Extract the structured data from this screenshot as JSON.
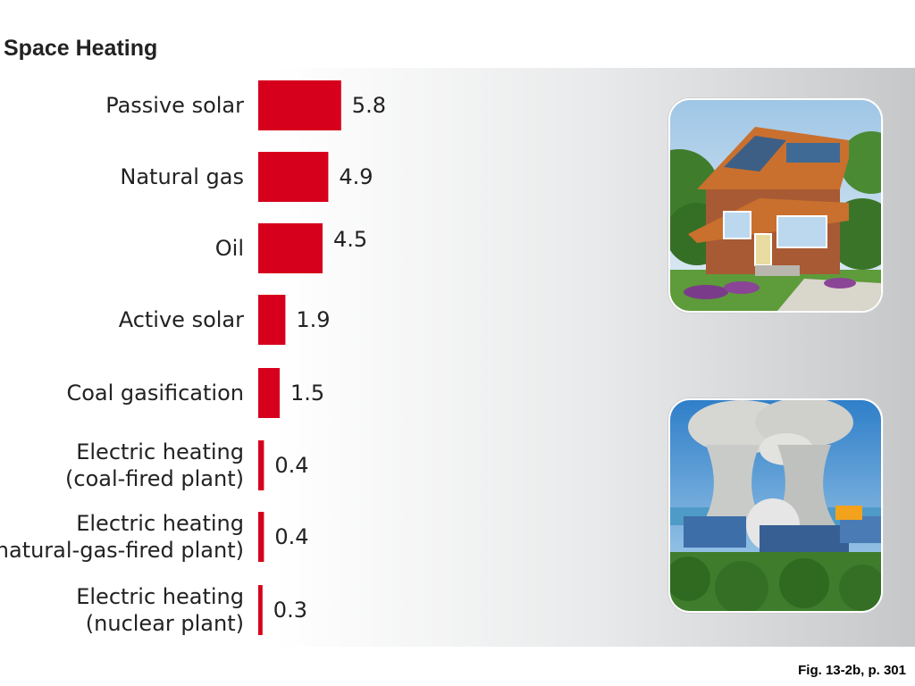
{
  "chart_data": {
    "type": "bar",
    "orientation": "horizontal",
    "title": "Space Heating",
    "categories": [
      [
        "Passive solar"
      ],
      [
        "Natural gas"
      ],
      [
        "Oil"
      ],
      [
        "Active solar"
      ],
      [
        "Coal gasification"
      ],
      [
        "Electric heating",
        "(coal-fired plant)"
      ],
      [
        "Electric heating",
        "(natural-gas-fired plant)"
      ],
      [
        "Electric heating",
        "(nuclear plant)"
      ]
    ],
    "values": [
      5.8,
      4.9,
      4.5,
      1.9,
      1.5,
      0.4,
      0.4,
      0.3
    ],
    "value_labels": [
      "5.8",
      "4.9",
      "4.5",
      "1.9",
      "1.5",
      "0.4",
      "0.4",
      "0.3"
    ],
    "bar_color": "#d6001c",
    "grid": false,
    "legend": "none"
  },
  "images": {
    "house": "house-with-solar-panels",
    "plant": "nuclear-power-plant-cooling-towers"
  },
  "caption": "Fig. 13-2b, p. 301"
}
